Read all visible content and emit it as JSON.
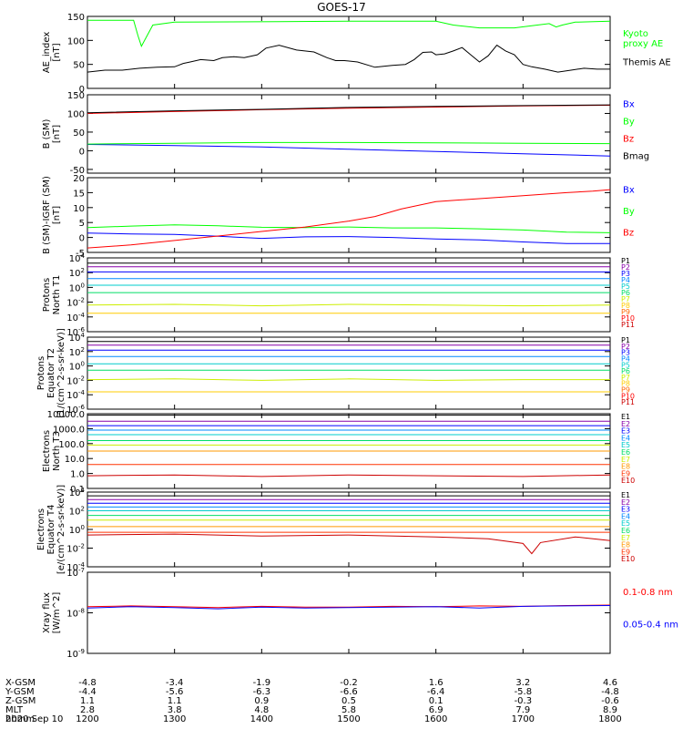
{
  "figure": {
    "title": "GOES-17",
    "date_label": "2020 Sep 10"
  },
  "x_axis": {
    "ticks": [
      "1200",
      "1300",
      "1400",
      "1500",
      "1600",
      "1700",
      "1800"
    ],
    "range": [
      1200,
      1800
    ],
    "row_labels": [
      "X-GSM",
      "Y-GSM",
      "Z-GSM",
      "MLT",
      "hhmm"
    ],
    "rows": [
      [
        "-4.8",
        "-3.4",
        "-1.9",
        "-0.2",
        "1.6",
        "3.2",
        "4.6"
      ],
      [
        "-4.4",
        "-5.6",
        "-6.3",
        "-6.6",
        "-6.4",
        "-5.8",
        "-4.8"
      ],
      [
        "1.1",
        "1.1",
        "0.9",
        "0.5",
        "0.1",
        "-0.3",
        "-0.6"
      ],
      [
        "2.8",
        "3.8",
        "4.8",
        "5.8",
        "6.9",
        "7.9",
        "8.9"
      ]
    ]
  },
  "chart_data": [
    {
      "type": "line",
      "ylabel": "AE_index\n[nT]",
      "ylim": [
        0,
        150
      ],
      "yticks": [
        "0",
        "50",
        "100",
        "150"
      ],
      "series": [
        {
          "name": "Kyoto\nproxy AE",
          "color": "#00ff00",
          "x": [
            1200,
            1240,
            1253,
            1258,
            1262,
            1275,
            1300,
            1420,
            1500,
            1580,
            1600,
            1620,
            1650,
            1690,
            1730,
            1738,
            1745,
            1760,
            1800
          ],
          "values": [
            142,
            142,
            142,
            110,
            88,
            132,
            138,
            139,
            140,
            140,
            140,
            132,
            126,
            126,
            135,
            128,
            132,
            138,
            140
          ]
        },
        {
          "name": "Themis AE",
          "color": "#000000",
          "x": [
            1200,
            1220,
            1240,
            1260,
            1280,
            1300,
            1310,
            1318,
            1330,
            1345,
            1355,
            1368,
            1380,
            1395,
            1405,
            1420,
            1440,
            1460,
            1475,
            1485,
            1495,
            1510,
            1530,
            1550,
            1565,
            1575,
            1585,
            1595,
            1600,
            1610,
            1620,
            1630,
            1640,
            1650,
            1660,
            1670,
            1680,
            1690,
            1700,
            1710,
            1725,
            1740,
            1755,
            1770,
            1785,
            1800
          ],
          "values": [
            34,
            38,
            38,
            42,
            44,
            45,
            52,
            55,
            60,
            58,
            64,
            66,
            64,
            70,
            84,
            90,
            80,
            76,
            64,
            58,
            58,
            55,
            44,
            48,
            50,
            60,
            75,
            76,
            70,
            72,
            78,
            85,
            70,
            55,
            68,
            90,
            78,
            70,
            50,
            45,
            40,
            34,
            38,
            42,
            40,
            40
          ]
        }
      ]
    },
    {
      "type": "line",
      "ylabel": "B (SM)\n[nT]",
      "ylim": [
        -60,
        150
      ],
      "yticks": [
        "-50",
        "0",
        "50",
        "100",
        "150"
      ],
      "series": [
        {
          "name": "Bx",
          "color": "#0000ff",
          "x": [
            1200,
            1300,
            1400,
            1500,
            1600,
            1700,
            1800
          ],
          "values": [
            17,
            14,
            10,
            4,
            -2,
            -8,
            -14
          ]
        },
        {
          "name": "By",
          "color": "#00ff00",
          "x": [
            1200,
            1300,
            1400,
            1500,
            1600,
            1700,
            1800
          ],
          "values": [
            18,
            20,
            22,
            22,
            21,
            20,
            19
          ]
        },
        {
          "name": "Bz",
          "color": "#ff0000",
          "x": [
            1200,
            1300,
            1400,
            1500,
            1600,
            1700,
            1800
          ],
          "values": [
            100,
            105,
            110,
            114,
            117,
            120,
            122
          ]
        },
        {
          "name": "Bmag",
          "color": "#000000",
          "x": [
            1200,
            1300,
            1400,
            1500,
            1600,
            1700,
            1800
          ],
          "values": [
            102,
            107,
            111,
            116,
            119,
            121,
            123
          ]
        }
      ]
    },
    {
      "type": "line",
      "ylabel": "B (SM)-IGRF (SM)\n[nT]",
      "ylim": [
        -5,
        20
      ],
      "yticks": [
        "-5",
        "0",
        "5",
        "10",
        "15",
        "20"
      ],
      "series": [
        {
          "name": "Bx",
          "color": "#0000ff",
          "x": [
            1200,
            1250,
            1300,
            1350,
            1400,
            1450,
            1500,
            1550,
            1600,
            1650,
            1700,
            1750,
            1800
          ],
          "values": [
            1.5,
            1.2,
            1.0,
            0.4,
            -0.3,
            0.2,
            0.3,
            0.0,
            -0.5,
            -0.8,
            -1.5,
            -2.0,
            -2.0
          ]
        },
        {
          "name": "By",
          "color": "#00ff00",
          "x": [
            1200,
            1250,
            1300,
            1350,
            1400,
            1450,
            1500,
            1550,
            1600,
            1650,
            1700,
            1750,
            1800
          ],
          "values": [
            3.3,
            3.8,
            4.2,
            3.9,
            3.4,
            3.3,
            3.5,
            3.2,
            3.2,
            2.9,
            2.5,
            1.8,
            1.6
          ]
        },
        {
          "name": "Bz",
          "color": "#ff0000",
          "x": [
            1200,
            1250,
            1300,
            1350,
            1400,
            1450,
            1500,
            1530,
            1560,
            1600,
            1650,
            1700,
            1750,
            1780,
            1800
          ],
          "values": [
            -3.5,
            -2.5,
            -1.0,
            0.5,
            2.0,
            3.5,
            5.5,
            7.0,
            9.5,
            12,
            13,
            14,
            15,
            15.5,
            16
          ]
        }
      ]
    },
    {
      "type": "line",
      "ylabel": "Protons\nNorth T1",
      "ylog": true,
      "ylim": [
        -6,
        4
      ],
      "yticks": [
        "10^-6",
        "10^-4",
        "10^-2",
        "10^0",
        "10^2",
        "10^4"
      ],
      "series": [
        {
          "name": "P1",
          "color": "#000000",
          "x": [
            1200,
            1800
          ],
          "values": [
            3.3,
            3.3
          ]
        },
        {
          "name": "P2",
          "color": "#8800aa",
          "x": [
            1200,
            1800
          ],
          "values": [
            2.8,
            2.8
          ]
        },
        {
          "name": "P3",
          "color": "#0000ff",
          "x": [
            1200,
            1800
          ],
          "values": [
            2.1,
            2.1
          ]
        },
        {
          "name": "P4",
          "color": "#0088ff",
          "x": [
            1200,
            1800
          ],
          "values": [
            1.2,
            1.2
          ]
        },
        {
          "name": "P5",
          "color": "#00cccc",
          "x": [
            1200,
            1800
          ],
          "values": [
            0.3,
            0.3
          ]
        },
        {
          "name": "P6",
          "color": "#00dd66",
          "x": [
            1200,
            1800
          ],
          "values": [
            -0.7,
            -0.7
          ]
        },
        {
          "name": "P7",
          "color": "#ccee00",
          "x": [
            1200,
            1300,
            1400,
            1500,
            1600,
            1700,
            1800
          ],
          "values": [
            -2.4,
            -2.3,
            -2.5,
            -2.3,
            -2.4,
            -2.5,
            -2.4
          ]
        },
        {
          "name": "P8",
          "color": "#ffcc00",
          "x": [
            1200,
            1800
          ],
          "values": [
            -3.5,
            -3.5
          ]
        },
        {
          "name": "P9",
          "color": "#ff6600",
          "x": [],
          "values": []
        },
        {
          "name": "P10",
          "color": "#ff0000",
          "x": [],
          "values": []
        },
        {
          "name": "P11",
          "color": "#cc0000",
          "x": [],
          "values": []
        }
      ]
    },
    {
      "type": "line",
      "ylabel": "Protons\nEquator T2\n[1/(cm^2-s-sr-keV)]",
      "ylog": true,
      "ylim": [
        -6,
        4
      ],
      "yticks": [
        "10^-6",
        "10^-4",
        "10^-2",
        "10^0",
        "10^2",
        "10^4"
      ],
      "series": [
        {
          "name": "P1",
          "color": "#000000",
          "x": [
            1200,
            1800
          ],
          "values": [
            3.4,
            3.4
          ]
        },
        {
          "name": "P2",
          "color": "#8800aa",
          "x": [
            1200,
            1800
          ],
          "values": [
            2.9,
            2.9
          ]
        },
        {
          "name": "P3",
          "color": "#0000ff",
          "x": [
            1200,
            1800
          ],
          "values": [
            2.2,
            2.2
          ]
        },
        {
          "name": "P4",
          "color": "#0088ff",
          "x": [
            1200,
            1800
          ],
          "values": [
            1.3,
            1.3
          ]
        },
        {
          "name": "P5",
          "color": "#00cccc",
          "x": [
            1200,
            1800
          ],
          "values": [
            0.3,
            0.3
          ]
        },
        {
          "name": "P6",
          "color": "#00dd66",
          "x": [
            1200,
            1800
          ],
          "values": [
            -0.6,
            -0.6
          ]
        },
        {
          "name": "P7",
          "color": "#ccee00",
          "x": [
            1200,
            1300,
            1400,
            1500,
            1600,
            1700,
            1800
          ],
          "values": [
            -1.9,
            -1.8,
            -2.0,
            -1.8,
            -2.0,
            -1.9,
            -1.9
          ]
        },
        {
          "name": "P8",
          "color": "#ffcc00",
          "x": [
            1200,
            1800
          ],
          "values": [
            -3.6,
            -3.6
          ]
        },
        {
          "name": "P9",
          "color": "#ff6600",
          "x": [],
          "values": []
        },
        {
          "name": "P10",
          "color": "#ff0000",
          "x": [],
          "values": []
        },
        {
          "name": "P11",
          "color": "#cc0000",
          "x": [],
          "values": []
        }
      ]
    },
    {
      "type": "line",
      "ylabel": "Electrons\nNorth T3",
      "ylog": true,
      "ylim": [
        -1,
        4
      ],
      "yticks": [
        "0.1",
        "1.0",
        "10.0",
        "100.0",
        "1000.0",
        "10000.0"
      ],
      "series": [
        {
          "name": "E1",
          "color": "#000000",
          "x": [
            1200,
            1800
          ],
          "values": [
            3.9,
            3.9
          ]
        },
        {
          "name": "E2",
          "color": "#8800aa",
          "x": [
            1200,
            1800
          ],
          "values": [
            3.5,
            3.5
          ]
        },
        {
          "name": "E3",
          "color": "#0000ff",
          "x": [
            1200,
            1800
          ],
          "values": [
            3.2,
            3.2
          ]
        },
        {
          "name": "E4",
          "color": "#0088ff",
          "x": [
            1200,
            1800
          ],
          "values": [
            2.9,
            2.9
          ]
        },
        {
          "name": "E5",
          "color": "#00cccc",
          "x": [
            1200,
            1800
          ],
          "values": [
            2.6,
            2.6
          ]
        },
        {
          "name": "E6",
          "color": "#00dd66",
          "x": [
            1200,
            1800
          ],
          "values": [
            2.2,
            2.2
          ]
        },
        {
          "name": "E7",
          "color": "#ccee00",
          "x": [
            1200,
            1800
          ],
          "values": [
            1.9,
            1.9
          ]
        },
        {
          "name": "E8",
          "color": "#ff9900",
          "x": [
            1200,
            1800
          ],
          "values": [
            1.5,
            1.5
          ]
        },
        {
          "name": "E9",
          "color": "#ff3300",
          "x": [
            1200,
            1800
          ],
          "values": [
            0.6,
            0.6
          ]
        },
        {
          "name": "E10",
          "color": "#cc0000",
          "x": [
            1200,
            1300,
            1400,
            1500,
            1600,
            1700,
            1800
          ],
          "values": [
            -0.15,
            -0.1,
            -0.2,
            -0.1,
            -0.15,
            -0.2,
            -0.1
          ]
        }
      ]
    },
    {
      "type": "line",
      "ylabel": "Electrons\nEquator T4\n[e/(cm^2-s-sr-keV)]",
      "ylog": true,
      "ylim": [
        -4,
        4
      ],
      "yticks": [
        "10^-4",
        "10^-2",
        "10^0",
        "10^2",
        "10^4"
      ],
      "series": [
        {
          "name": "E1",
          "color": "#000000",
          "x": [
            1200,
            1800
          ],
          "values": [
            3.6,
            3.6
          ]
        },
        {
          "name": "E2",
          "color": "#8800aa",
          "x": [
            1200,
            1800
          ],
          "values": [
            3.2,
            3.2
          ]
        },
        {
          "name": "E3",
          "color": "#0000ff",
          "x": [
            1200,
            1800
          ],
          "values": [
            2.8,
            2.8
          ]
        },
        {
          "name": "E4",
          "color": "#0088ff",
          "x": [
            1200,
            1800
          ],
          "values": [
            2.4,
            2.4
          ]
        },
        {
          "name": "E5",
          "color": "#00cccc",
          "x": [
            1200,
            1800
          ],
          "values": [
            2.0,
            2.0
          ]
        },
        {
          "name": "E6",
          "color": "#00dd66",
          "x": [
            1200,
            1800
          ],
          "values": [
            1.5,
            1.5
          ]
        },
        {
          "name": "E7",
          "color": "#ccee00",
          "x": [
            1200,
            1800
          ],
          "values": [
            1.0,
            1.0
          ]
        },
        {
          "name": "E8",
          "color": "#ff9900",
          "x": [
            1200,
            1800
          ],
          "values": [
            0.3,
            0.3
          ]
        },
        {
          "name": "E9",
          "color": "#ff3300",
          "x": [
            1200,
            1800
          ],
          "values": [
            -0.3,
            -0.3
          ]
        },
        {
          "name": "E10",
          "color": "#cc0000",
          "x": [
            1200,
            1300,
            1400,
            1500,
            1600,
            1660,
            1700,
            1710,
            1720,
            1760,
            1800
          ],
          "values": [
            -0.6,
            -0.5,
            -0.7,
            -0.6,
            -0.8,
            -1.0,
            -1.5,
            -2.6,
            -1.4,
            -0.8,
            -1.2
          ]
        }
      ]
    },
    {
      "type": "line",
      "ylabel": "Xray flux\n[W/m^2]",
      "ylog": true,
      "ylim": [
        -9,
        -7
      ],
      "yticks": [
        "10^-9",
        "10^-8",
        "10^-7"
      ],
      "series": [
        {
          "name": "0.1-0.8 nm",
          "color": "#ff0000",
          "x": [
            1200,
            1250,
            1300,
            1350,
            1400,
            1450,
            1500,
            1550,
            1600,
            1650,
            1700,
            1750,
            1800
          ],
          "values": [
            -7.85,
            -7.83,
            -7.85,
            -7.87,
            -7.84,
            -7.86,
            -7.86,
            -7.84,
            -7.85,
            -7.83,
            -7.84,
            -7.82,
            -7.81
          ]
        },
        {
          "name": "0.05-0.4 nm",
          "color": "#0000ff",
          "x": [
            1200,
            1250,
            1300,
            1350,
            1400,
            1450,
            1500,
            1550,
            1600,
            1650,
            1700,
            1750,
            1800
          ],
          "values": [
            -7.88,
            -7.85,
            -7.87,
            -7.9,
            -7.86,
            -7.88,
            -7.87,
            -7.86,
            -7.85,
            -7.88,
            -7.84,
            -7.83,
            -7.82
          ]
        }
      ]
    }
  ]
}
